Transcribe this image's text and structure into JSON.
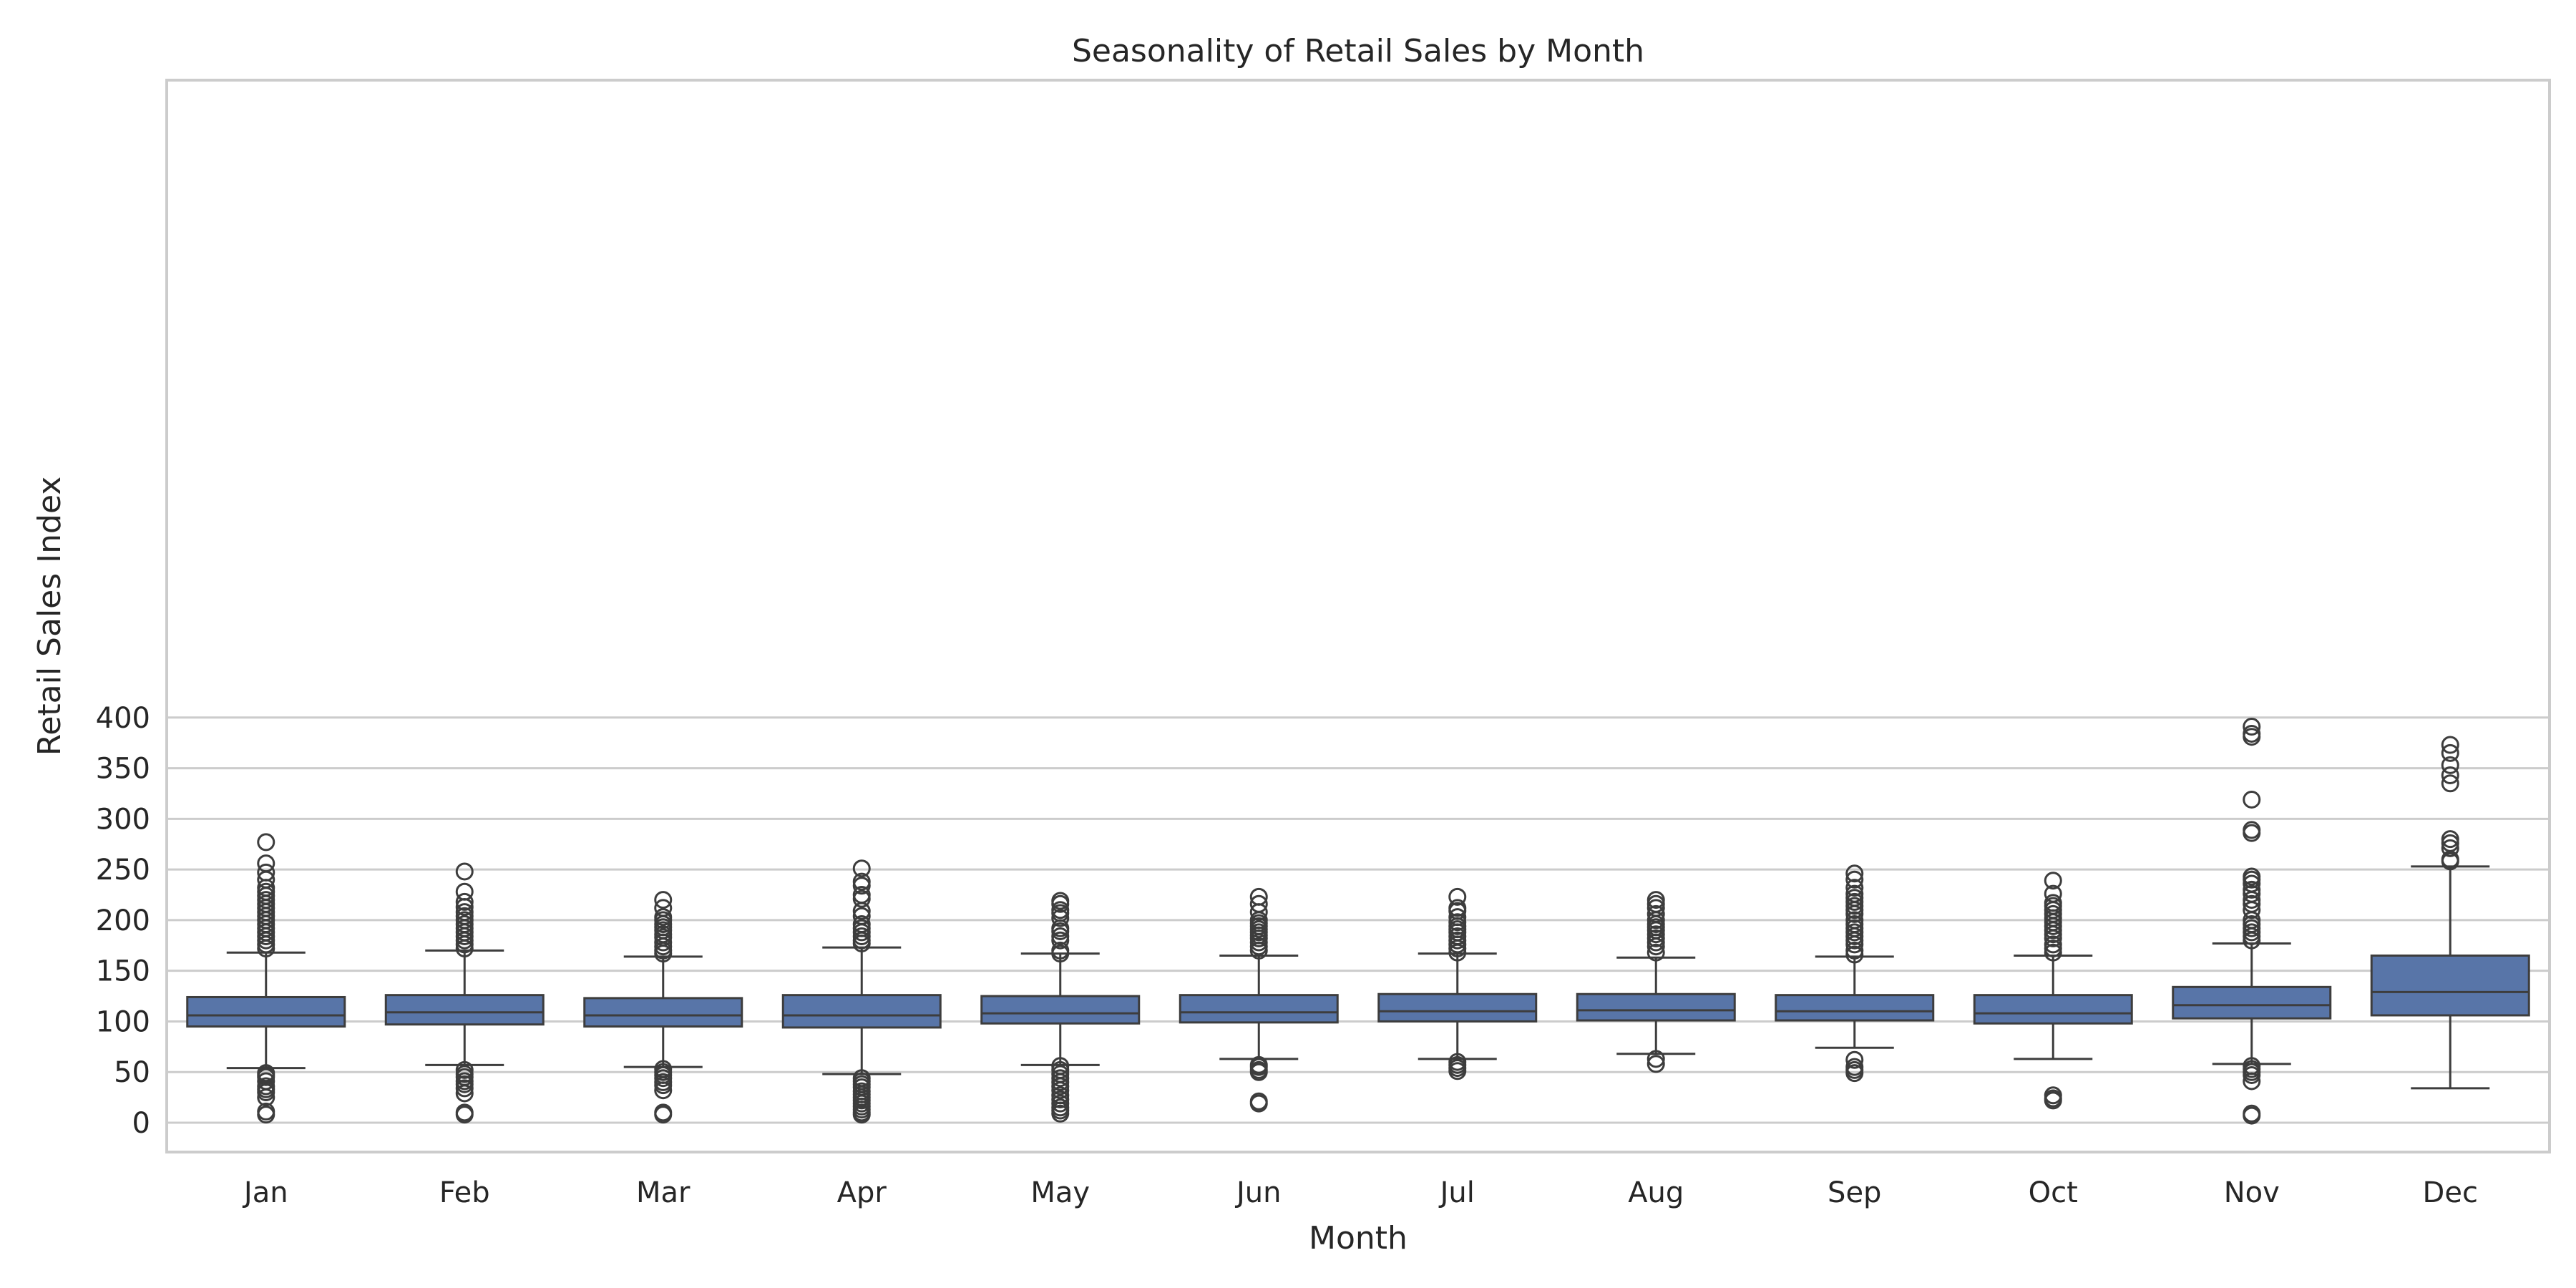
{
  "chart_data": {
    "type": "box",
    "title": "Seasonality of Retail Sales by Month",
    "xlabel": "Month",
    "ylabel": "Retail Sales Index",
    "ylim": [
      -12,
      410
    ],
    "yticks": [
      0,
      50,
      100,
      150,
      200,
      250,
      300,
      350,
      400
    ],
    "grid": "horizontal",
    "colors": {
      "box_fill": "#5875a8",
      "line": "#3d3d3d",
      "grid": "#cccccc",
      "frame": "#cccccc"
    },
    "categories": [
      "Jan",
      "Feb",
      "Mar",
      "Apr",
      "May",
      "Jun",
      "Jul",
      "Aug",
      "Sep",
      "Oct",
      "Nov",
      "Dec"
    ],
    "boxes": [
      {
        "month": "Jan",
        "whisker_low": 54,
        "q1": 95,
        "median": 106,
        "q3": 124,
        "whisker_high": 168,
        "outliers": [
          277,
          256,
          247,
          240,
          232,
          228,
          224,
          220,
          216,
          212,
          208,
          204,
          200,
          196,
          192,
          188,
          184,
          180,
          176,
          172,
          49,
          47,
          45,
          41,
          36,
          33,
          30,
          25,
          11,
          8
        ]
      },
      {
        "month": "Feb",
        "whisker_low": 57,
        "q1": 97,
        "median": 109,
        "q3": 126,
        "whisker_high": 170,
        "outliers": [
          248,
          228,
          218,
          213,
          208,
          204,
          200,
          196,
          192,
          188,
          184,
          180,
          176,
          172,
          52,
          48,
          45,
          41,
          38,
          34,
          29,
          10,
          8
        ]
      },
      {
        "month": "Mar",
        "whisker_low": 55,
        "q1": 95,
        "median": 106,
        "q3": 123,
        "whisker_high": 164,
        "outliers": [
          220,
          212,
          203,
          200,
          196,
          193,
          190,
          186,
          183,
          178,
          174,
          170,
          167,
          53,
          50,
          47,
          44,
          40,
          37,
          32,
          10,
          8
        ]
      },
      {
        "month": "Apr",
        "whisker_low": 48,
        "q1": 94,
        "median": 106,
        "q3": 126,
        "whisker_high": 173,
        "outliers": [
          251,
          238,
          234,
          225,
          221,
          209,
          204,
          196,
          192,
          188,
          184,
          180,
          177,
          44,
          41,
          38,
          35,
          31,
          28,
          25,
          22,
          19,
          16,
          13,
          10,
          8
        ]
      },
      {
        "month": "May",
        "whisker_low": 57,
        "q1": 98,
        "median": 108,
        "q3": 125,
        "whisker_high": 167,
        "outliers": [
          219,
          216,
          210,
          207,
          202,
          192,
          189,
          184,
          180,
          170,
          167,
          56,
          52,
          48,
          44,
          40,
          36,
          32,
          27,
          23,
          19,
          15,
          12,
          9
        ]
      },
      {
        "month": "Jun",
        "whisker_low": 63,
        "q1": 99,
        "median": 109,
        "q3": 126,
        "whisker_high": 165,
        "outliers": [
          223,
          216,
          208,
          200,
          197,
          194,
          191,
          188,
          185,
          182,
          178,
          174,
          170,
          57,
          55,
          52,
          50,
          21,
          19
        ]
      },
      {
        "month": "Jul",
        "whisker_low": 63,
        "q1": 100,
        "median": 110,
        "q3": 127,
        "whisker_high": 167,
        "outliers": [
          223,
          212,
          209,
          203,
          198,
          194,
          191,
          188,
          184,
          180,
          176,
          172,
          168,
          60,
          57,
          54,
          51
        ]
      },
      {
        "month": "Aug",
        "whisker_low": 68,
        "q1": 101,
        "median": 111,
        "q3": 127,
        "whisker_high": 163,
        "outliers": [
          220,
          216,
          212,
          206,
          200,
          196,
          193,
          190,
          186,
          182,
          178,
          174,
          168,
          63,
          58
        ]
      },
      {
        "month": "Sep",
        "whisker_low": 74,
        "q1": 101,
        "median": 110,
        "q3": 126,
        "whisker_high": 164,
        "outliers": [
          246,
          240,
          232,
          226,
          222,
          218,
          214,
          210,
          206,
          200,
          196,
          192,
          188,
          184,
          180,
          176,
          170,
          166,
          62,
          55,
          52,
          49
        ]
      },
      {
        "month": "Oct",
        "whisker_low": 63,
        "q1": 98,
        "median": 108,
        "q3": 126,
        "whisker_high": 165,
        "outliers": [
          239,
          226,
          217,
          214,
          210,
          206,
          202,
          198,
          194,
          190,
          186,
          182,
          176,
          172,
          168,
          27,
          24,
          22
        ]
      },
      {
        "month": "Nov",
        "whisker_low": 58,
        "q1": 103,
        "median": 116,
        "q3": 134,
        "whisker_high": 177,
        "outliers": [
          391,
          384,
          381,
          319,
          289,
          286,
          243,
          240,
          236,
          230,
          226,
          220,
          216,
          210,
          200,
          196,
          192,
          188,
          184,
          180,
          56,
          53,
          50,
          47,
          41,
          9,
          7
        ]
      },
      {
        "month": "Dec",
        "whisker_low": 34,
        "q1": 106,
        "median": 129,
        "q3": 165,
        "whisker_high": 253,
        "outliers": [
          373,
          365,
          353,
          343,
          335,
          280,
          276,
          271,
          260,
          258
        ]
      }
    ]
  }
}
